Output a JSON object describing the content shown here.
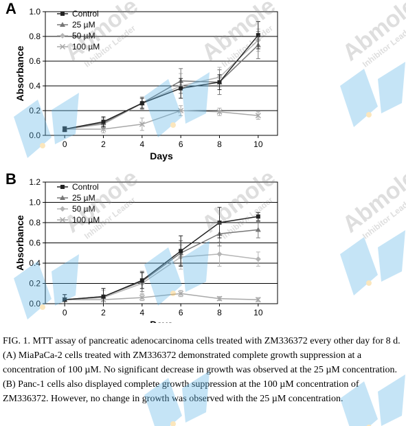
{
  "chart_data": [
    {
      "type": "line",
      "panel": "A",
      "xlabel": "Days",
      "ylabel": "Absorbance",
      "x": [
        0,
        2,
        4,
        6,
        8,
        10
      ],
      "xlim": [
        -1,
        11
      ],
      "ylim": [
        0.0,
        1.0
      ],
      "yticks": [
        "0.0",
        "0.2",
        "0.4",
        "0.6",
        "0.8",
        "1.0"
      ],
      "xticks": [
        "0",
        "2",
        "4",
        "6",
        "8",
        "10"
      ],
      "grid": "horizontal",
      "legend": "top-left",
      "series": [
        {
          "name": "Control",
          "values": [
            0.05,
            0.11,
            0.26,
            0.38,
            0.43,
            0.81
          ],
          "errors": [
            0.02,
            0.04,
            0.04,
            0.08,
            0.06,
            0.11
          ],
          "color": "#222222",
          "marker": "square"
        },
        {
          "name": "25 µM",
          "values": [
            0.05,
            0.1,
            0.26,
            0.44,
            0.43,
            0.73
          ],
          "errors": [
            0.02,
            0.04,
            0.05,
            0.1,
            0.1,
            0.11
          ],
          "color": "#777777",
          "marker": "triangle"
        },
        {
          "name": "50 µM",
          "values": [
            0.05,
            0.09,
            0.26,
            0.4,
            0.47,
            0.77
          ],
          "errors": [
            0.02,
            0.03,
            0.04,
            0.1,
            0.08,
            0.09
          ],
          "color": "#b5b5b5",
          "marker": "diamond"
        },
        {
          "name": "100 µM",
          "values": [
            0.05,
            0.05,
            0.09,
            0.2,
            0.19,
            0.16
          ],
          "errors": [
            0.02,
            0.03,
            0.05,
            0.04,
            0.03,
            0.03
          ],
          "color": "#a8a8a8",
          "marker": "cross"
        }
      ]
    },
    {
      "type": "line",
      "panel": "B",
      "xlabel": "Days",
      "ylabel": "Absorbance",
      "x": [
        0,
        2,
        4,
        6,
        8,
        10
      ],
      "xlim": [
        -1,
        11
      ],
      "ylim": [
        0.0,
        1.2
      ],
      "yticks": [
        "0.0",
        "0.2",
        "0.4",
        "0.6",
        "0.8",
        "1.0",
        "1.2"
      ],
      "xticks": [
        "0",
        "2",
        "4",
        "6",
        "8",
        "10"
      ],
      "grid": "horizontal",
      "legend": "top-left",
      "series": [
        {
          "name": "Control",
          "values": [
            0.04,
            0.07,
            0.23,
            0.52,
            0.8,
            0.86
          ],
          "errors": [
            0.05,
            0.08,
            0.08,
            0.15,
            0.15,
            0.04
          ],
          "color": "#222222",
          "marker": "square"
        },
        {
          "name": "25 µM",
          "values": [
            0.04,
            0.07,
            0.22,
            0.5,
            0.69,
            0.73
          ],
          "errors": [
            0.05,
            0.08,
            0.1,
            0.12,
            0.12,
            0.08
          ],
          "color": "#777777",
          "marker": "triangle"
        },
        {
          "name": "50 µM",
          "values": [
            0.04,
            0.06,
            0.2,
            0.46,
            0.49,
            0.44
          ],
          "errors": [
            0.05,
            0.07,
            0.1,
            0.12,
            0.12,
            0.07
          ],
          "color": "#b5b5b5",
          "marker": "diamond"
        },
        {
          "name": "100 µM",
          "values": [
            0.04,
            0.04,
            0.06,
            0.1,
            0.05,
            0.04
          ],
          "errors": [
            0.02,
            0.02,
            0.03,
            0.03,
            0.02,
            0.02
          ],
          "color": "#a8a8a8",
          "marker": "cross"
        }
      ]
    }
  ],
  "caption": "FIG. 1. MTT assay of pancreatic adenocarcinoma cells treated with ZM336372 every other day for 8 d. (A) MiaPaCa-2 cells treated with ZM336372 demonstrated complete growth suppression at a concentration of 100 µM. No significant decrease in growth was observed at the 25 µM concentration. (B) Panc-1 cells also displayed complete growth suppression at the 100 µM concentration of ZM336372. However, no change in growth was observed with the 25 µM concentration.",
  "watermark": {
    "brand": "Abmole",
    "tagline": "Inhibitor Leader",
    "color": "#5bb4e8",
    "dot_color": "#f5b942"
  }
}
